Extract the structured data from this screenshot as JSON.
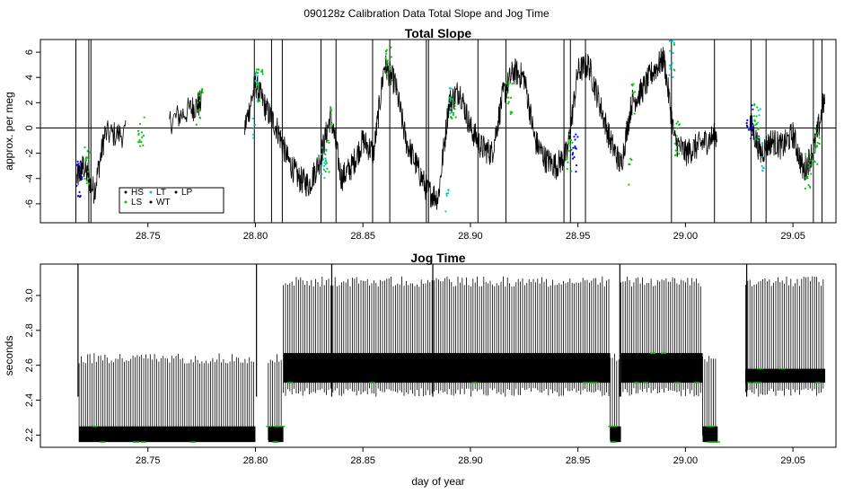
{
  "figure_title": "090128z   Calibration Data Total Slope and Jog Time",
  "colors": {
    "HS": "#000000",
    "LS": "#00cc00",
    "LT": "#00cccc",
    "WT": "#000000",
    "LP": "#000000",
    "blue_points": "#0000ff",
    "trace": "#000000"
  },
  "legend": {
    "entries": [
      {
        "key": "HS",
        "label": "HS",
        "color": "#000000"
      },
      {
        "key": "LS",
        "label": "LS",
        "color": "#00cc00"
      },
      {
        "key": "LT",
        "label": "LT",
        "color": "#00cccc"
      },
      {
        "key": "WT",
        "label": "WT",
        "color": "#000000"
      },
      {
        "key": "LP",
        "label": "LP",
        "color": "#000000"
      }
    ]
  },
  "chart_data": [
    {
      "type": "line",
      "title": "Total Slope",
      "xlabel": "",
      "ylabel": "approx. per meg",
      "xlim": [
        28.7,
        29.07
      ],
      "ylim": [
        -7.5,
        7
      ],
      "x_ticks": [
        "28.75",
        "28.80",
        "28.85",
        "28.90",
        "28.95",
        "29.00",
        "29.05"
      ],
      "x_tick_values": [
        28.75,
        28.8,
        28.85,
        28.9,
        28.95,
        29.0,
        29.05
      ],
      "y_ticks": [
        "-6",
        "-4",
        "-2",
        "0",
        "2",
        "4",
        "6"
      ],
      "y_tick_values": [
        -6,
        -4,
        -2,
        0,
        2,
        4,
        6
      ],
      "reference_line": 0,
      "legend_position": "bottom-left",
      "series": [
        {
          "name": "Total Slope trace",
          "x": [
            28.717,
            28.72,
            28.725,
            28.73,
            28.74,
            28.75,
            28.76,
            28.77,
            28.775,
            28.785,
            28.795,
            28.8,
            28.805,
            28.81,
            28.815,
            28.82,
            28.825,
            28.83,
            28.835,
            28.84,
            28.845,
            28.85,
            28.855,
            28.86,
            28.865,
            28.87,
            28.875,
            28.88,
            28.885,
            28.89,
            28.895,
            28.9,
            28.905,
            28.91,
            28.915,
            28.92,
            28.925,
            28.93,
            28.935,
            28.94,
            28.945,
            28.95,
            28.955,
            28.96,
            28.965,
            28.97,
            28.975,
            28.98,
            28.985,
            28.99,
            28.995,
            29.0,
            29.005,
            29.01,
            29.015,
            29.03,
            29.035,
            29.04,
            29.045,
            29.05,
            29.055,
            29.06,
            29.065
          ],
          "values": [
            -4.0,
            -3.0,
            -5.0,
            -0.5,
            -0.5,
            0.5,
            0.5,
            1.5,
            2.0,
            -2.0,
            0.0,
            3.5,
            1.5,
            0.0,
            -2.5,
            -4.0,
            -4.5,
            -2.5,
            1.0,
            -4.0,
            -3.0,
            -1.0,
            -2.0,
            5.0,
            3.5,
            -1.0,
            -3.0,
            -5.0,
            -5.5,
            2.0,
            3.0,
            0.0,
            -1.5,
            -2.0,
            2.5,
            4.5,
            4.0,
            -1.0,
            -2.5,
            -3.0,
            -2.0,
            4.5,
            5.0,
            2.0,
            -1.0,
            -3.0,
            2.0,
            3.0,
            4.5,
            5.5,
            -1.0,
            -2.0,
            -1.5,
            -1.0,
            -0.5,
            0.5,
            -2.0,
            -1.0,
            -1.5,
            -0.5,
            -3.5,
            -1.5,
            2.5
          ]
        }
      ]
    },
    {
      "type": "line",
      "title": "Jog Time",
      "xlabel": "day of year",
      "ylabel": "seconds",
      "xlim": [
        28.7,
        29.07
      ],
      "ylim": [
        2.13,
        3.18
      ],
      "x_ticks": [
        "28.75",
        "28.80",
        "28.85",
        "28.90",
        "28.95",
        "29.00",
        "29.05"
      ],
      "x_tick_values": [
        28.75,
        28.8,
        28.85,
        28.9,
        28.95,
        29.0,
        29.05
      ],
      "y_ticks": [
        "2.2",
        "2.4",
        "2.6",
        "2.8",
        "3.0"
      ],
      "y_tick_values": [
        2.2,
        2.4,
        2.6,
        2.8,
        3.0
      ],
      "segments": [
        {
          "x_start": 28.718,
          "x_end": 28.8,
          "low": 2.16,
          "high": 2.67,
          "band_low": 2.16,
          "band_high": 2.25
        },
        {
          "x_start": 28.806,
          "x_end": 28.813,
          "low": 2.16,
          "high": 2.67,
          "band_low": 2.16,
          "band_high": 2.25
        },
        {
          "x_start": 28.813,
          "x_end": 28.965,
          "low": 2.42,
          "high": 3.11,
          "band_low": 2.5,
          "band_high": 2.67
        },
        {
          "x_start": 28.965,
          "x_end": 28.97,
          "low": 2.16,
          "high": 2.67,
          "band_low": 2.16,
          "band_high": 2.25
        },
        {
          "x_start": 28.97,
          "x_end": 29.008,
          "low": 2.42,
          "high": 3.11,
          "band_low": 2.5,
          "band_high": 2.67
        },
        {
          "x_start": 29.008,
          "x_end": 29.015,
          "low": 2.16,
          "high": 2.67,
          "band_low": 2.16,
          "band_high": 2.25
        },
        {
          "x_start": 29.028,
          "x_end": 29.065,
          "low": 2.42,
          "high": 3.11,
          "band_low": 2.5,
          "band_high": 2.58
        }
      ]
    }
  ]
}
